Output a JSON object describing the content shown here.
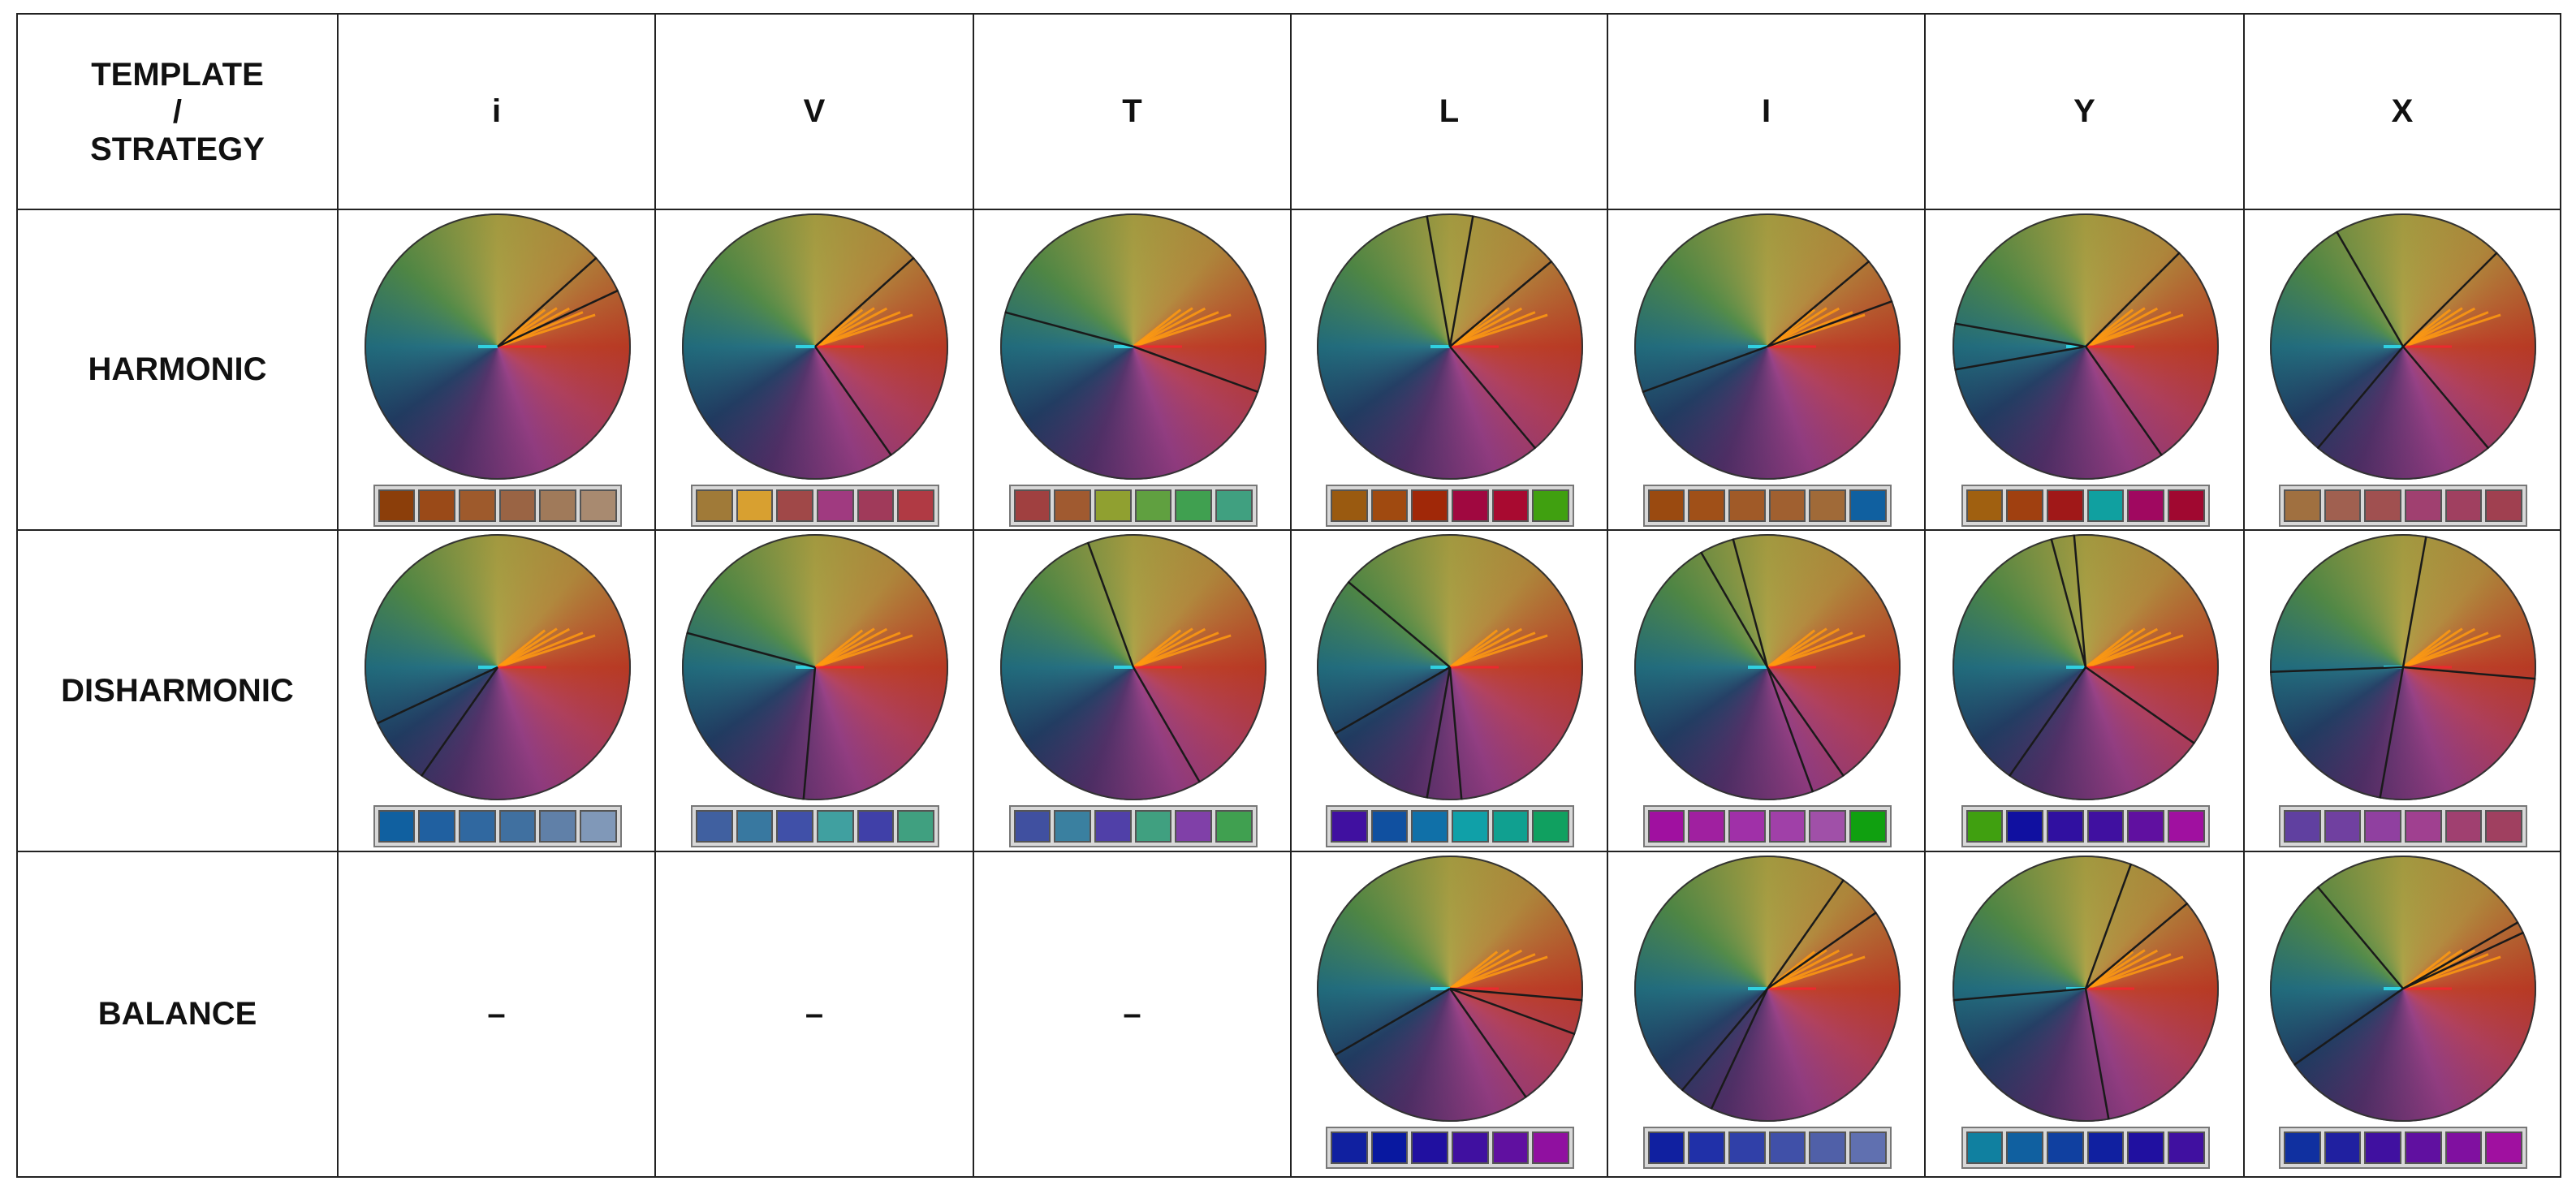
{
  "header": {
    "title_lines": [
      "TEMPLATE",
      "/",
      "STRATEGY"
    ],
    "columns": [
      "i",
      "V",
      "T",
      "L",
      "I",
      "Y",
      "X"
    ]
  },
  "rows": [
    {
      "label": "HARMONIC",
      "cells": [
        {
          "swatches": [
            "#8b3e0a",
            "#9a4a18",
            "#9e5a2c",
            "#9a6444",
            "#a07a5a",
            "#a88a70"
          ]
        },
        {
          "swatches": [
            "#a07a38",
            "#d8a030",
            "#a04848",
            "#a03a80",
            "#a03a5a",
            "#b03a44"
          ]
        },
        {
          "swatches": [
            "#a04040",
            "#a05a30",
            "#90a030",
            "#60a040",
            "#40a050",
            "#40a080"
          ]
        },
        {
          "swatches": [
            "#9a5a10",
            "#a04a10",
            "#a02808",
            "#a00840",
            "#a80a30",
            "#40a010"
          ]
        },
        {
          "swatches": [
            "#9a4a10",
            "#a05018",
            "#a05a28",
            "#a06030",
            "#a06a38",
            "#1060a0"
          ]
        },
        {
          "swatches": [
            "#a06010",
            "#a04010",
            "#a01818",
            "#10a0a0",
            "#a00860",
            "#a00830"
          ]
        },
        {
          "swatches": [
            "#a07040",
            "#a06050",
            "#a05050",
            "#a04070",
            "#a04060",
            "#a04050"
          ]
        }
      ]
    },
    {
      "label": "DISHARMONIC",
      "cells": [
        {
          "swatches": [
            "#1060a0",
            "#2060a0",
            "#3068a0",
            "#4070a0",
            "#6080a8",
            "#8098b8"
          ]
        },
        {
          "swatches": [
            "#4060a0",
            "#3878a0",
            "#4050a8",
            "#40a0a0",
            "#4040a8",
            "#40a080"
          ]
        },
        {
          "swatches": [
            "#4050a0",
            "#3a80a0",
            "#5040a8",
            "#40a080",
            "#8040a8",
            "#40a050"
          ]
        },
        {
          "swatches": [
            "#4010a0",
            "#1050a0",
            "#1070a8",
            "#10a0a8",
            "#10a090",
            "#10a060"
          ]
        },
        {
          "swatches": [
            "#a010a0",
            "#a020a0",
            "#a030a8",
            "#a040a8",
            "#a050a8",
            "#10a010"
          ]
        },
        {
          "swatches": [
            "#40a010",
            "#1010a0",
            "#3010a0",
            "#4010a0",
            "#6010a0",
            "#a010a0"
          ]
        },
        {
          "swatches": [
            "#6040a0",
            "#7040a0",
            "#9040a0",
            "#a04090",
            "#a04070",
            "#a04060"
          ]
        }
      ]
    },
    {
      "label": "BALANCE",
      "cells": [
        {
          "text": "–"
        },
        {
          "text": "–"
        },
        {
          "text": "–"
        },
        {
          "swatches": [
            "#1020a0",
            "#0818a0",
            "#2010a0",
            "#4010a0",
            "#6010a0",
            "#9010a0"
          ]
        },
        {
          "swatches": [
            "#1020a0",
            "#2030a8",
            "#3040a8",
            "#4050a8",
            "#5060a8",
            "#6070b0"
          ]
        },
        {
          "swatches": [
            "#1080a0",
            "#1060a0",
            "#1040a0",
            "#1020a0",
            "#2010a0",
            "#4010a0"
          ]
        },
        {
          "swatches": [
            "#1030a0",
            "#2020a0",
            "#4010a0",
            "#6010a0",
            "#8010a0",
            "#a010a0"
          ]
        }
      ]
    }
  ]
}
